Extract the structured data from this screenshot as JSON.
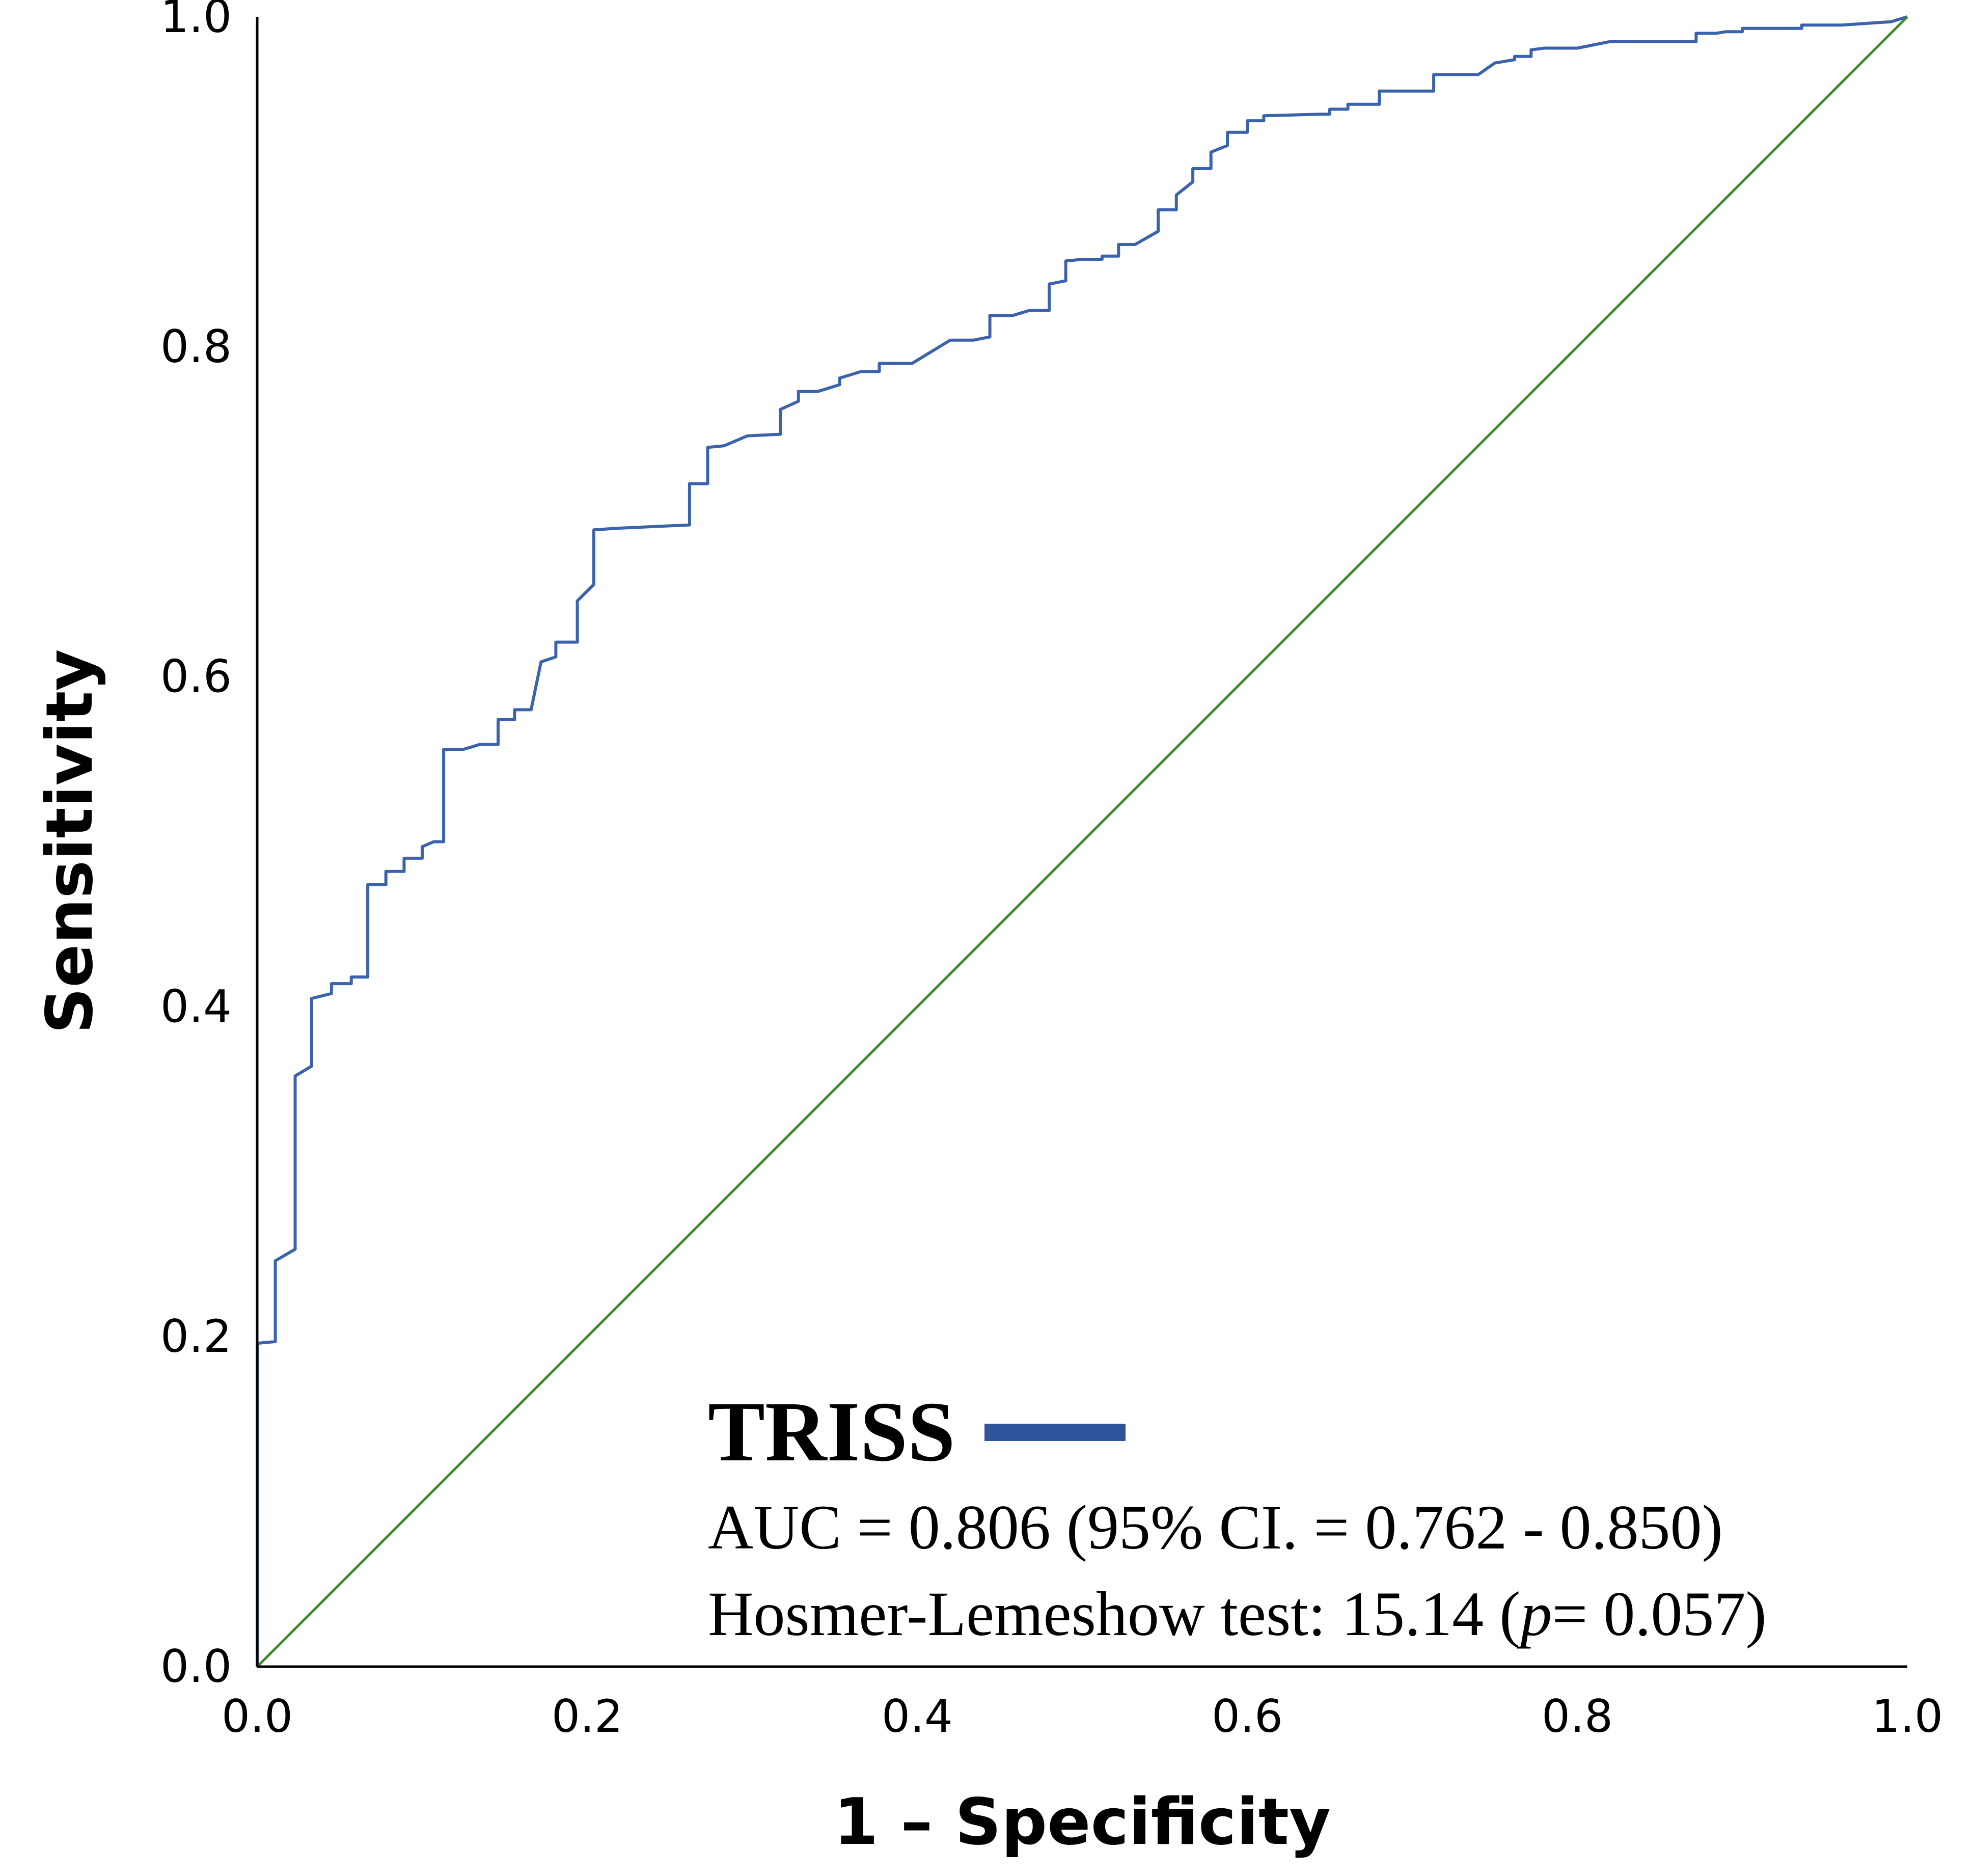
{
  "chart_data": {
    "type": "line",
    "xlabel": "1 – Specificity",
    "ylabel": "Sensitivity",
    "xlim": [
      0,
      1
    ],
    "ylim": [
      0,
      1
    ],
    "x_ticks": [
      "0.0",
      "0.2",
      "0.4",
      "0.6",
      "0.8",
      "1.0"
    ],
    "y_ticks": [
      "0.0",
      "0.2",
      "0.4",
      "0.6",
      "0.8",
      "1.0"
    ],
    "grid": false,
    "legend_position": "bottom-right",
    "series": [
      {
        "name": "TRISS",
        "color": "#3b62ad",
        "points": [
          [
            0.0,
            0.0
          ],
          [
            0.0,
            0.196
          ],
          [
            0.011,
            0.197
          ],
          [
            0.011,
            0.246
          ],
          [
            0.023,
            0.253
          ],
          [
            0.023,
            0.358
          ],
          [
            0.033,
            0.364
          ],
          [
            0.033,
            0.405
          ],
          [
            0.045,
            0.408
          ],
          [
            0.045,
            0.414
          ],
          [
            0.057,
            0.414
          ],
          [
            0.057,
            0.418
          ],
          [
            0.067,
            0.418
          ],
          [
            0.067,
            0.474
          ],
          [
            0.078,
            0.474
          ],
          [
            0.078,
            0.482
          ],
          [
            0.089,
            0.482
          ],
          [
            0.089,
            0.49
          ],
          [
            0.1,
            0.49
          ],
          [
            0.1,
            0.497
          ],
          [
            0.107,
            0.5
          ],
          [
            0.113,
            0.5
          ],
          [
            0.113,
            0.556
          ],
          [
            0.125,
            0.556
          ],
          [
            0.135,
            0.559
          ],
          [
            0.146,
            0.559
          ],
          [
            0.146,
            0.574
          ],
          [
            0.156,
            0.574
          ],
          [
            0.156,
            0.58
          ],
          [
            0.166,
            0.58
          ],
          [
            0.172,
            0.609
          ],
          [
            0.181,
            0.612
          ],
          [
            0.181,
            0.621
          ],
          [
            0.194,
            0.621
          ],
          [
            0.194,
            0.646
          ],
          [
            0.204,
            0.656
          ],
          [
            0.204,
            0.689
          ],
          [
            0.218,
            0.69
          ],
          [
            0.262,
            0.692
          ],
          [
            0.262,
            0.717
          ],
          [
            0.273,
            0.717
          ],
          [
            0.273,
            0.739
          ],
          [
            0.283,
            0.74
          ],
          [
            0.297,
            0.746
          ],
          [
            0.317,
            0.747
          ],
          [
            0.317,
            0.762
          ],
          [
            0.328,
            0.767
          ],
          [
            0.328,
            0.773
          ],
          [
            0.34,
            0.773
          ],
          [
            0.353,
            0.777
          ],
          [
            0.353,
            0.781
          ],
          [
            0.366,
            0.785
          ],
          [
            0.377,
            0.785
          ],
          [
            0.377,
            0.79
          ],
          [
            0.397,
            0.79
          ],
          [
            0.42,
            0.804
          ],
          [
            0.434,
            0.804
          ],
          [
            0.444,
            0.806
          ],
          [
            0.444,
            0.819
          ],
          [
            0.458,
            0.819
          ],
          [
            0.468,
            0.822
          ],
          [
            0.48,
            0.822
          ],
          [
            0.48,
            0.838
          ],
          [
            0.49,
            0.84
          ],
          [
            0.49,
            0.852
          ],
          [
            0.5,
            0.853
          ],
          [
            0.512,
            0.853
          ],
          [
            0.512,
            0.855
          ],
          [
            0.522,
            0.855
          ],
          [
            0.522,
            0.862
          ],
          [
            0.532,
            0.862
          ],
          [
            0.546,
            0.87
          ],
          [
            0.546,
            0.883
          ],
          [
            0.557,
            0.883
          ],
          [
            0.557,
            0.892
          ],
          [
            0.567,
            0.9
          ],
          [
            0.567,
            0.908
          ],
          [
            0.578,
            0.908
          ],
          [
            0.578,
            0.918
          ],
          [
            0.588,
            0.922
          ],
          [
            0.588,
            0.93
          ],
          [
            0.6,
            0.93
          ],
          [
            0.6,
            0.937
          ],
          [
            0.61,
            0.937
          ],
          [
            0.61,
            0.94
          ],
          [
            0.645,
            0.941
          ],
          [
            0.65,
            0.941
          ],
          [
            0.65,
            0.944
          ],
          [
            0.661,
            0.944
          ],
          [
            0.661,
            0.947
          ],
          [
            0.68,
            0.947
          ],
          [
            0.68,
            0.955
          ],
          [
            0.713,
            0.955
          ],
          [
            0.713,
            0.965
          ],
          [
            0.74,
            0.965
          ],
          [
            0.75,
            0.972
          ],
          [
            0.762,
            0.974
          ],
          [
            0.762,
            0.976
          ],
          [
            0.772,
            0.976
          ],
          [
            0.772,
            0.98
          ],
          [
            0.78,
            0.981
          ],
          [
            0.8,
            0.981
          ],
          [
            0.82,
            0.985
          ],
          [
            0.872,
            0.985
          ],
          [
            0.872,
            0.99
          ],
          [
            0.884,
            0.99
          ],
          [
            0.89,
            0.991
          ],
          [
            0.9,
            0.991
          ],
          [
            0.9,
            0.993
          ],
          [
            0.936,
            0.993
          ],
          [
            0.936,
            0.995
          ],
          [
            0.96,
            0.995
          ],
          [
            0.99,
            0.997
          ],
          [
            1.0,
            1.0
          ]
        ]
      },
      {
        "name": "",
        "color": "#3e8a2a",
        "points": [
          [
            0.0,
            0.0
          ],
          [
            1.0,
            1.0
          ]
        ]
      }
    ],
    "legend": {
      "name": "TRISS",
      "line_color": "#2f549c",
      "lines": [
        "AUC = 0.806 (95% CI. = 0.762 - 0.850)",
        "Hosmer-Lemeshow test: 15.14 (",
        "p",
        "= 0.057)"
      ]
    }
  }
}
